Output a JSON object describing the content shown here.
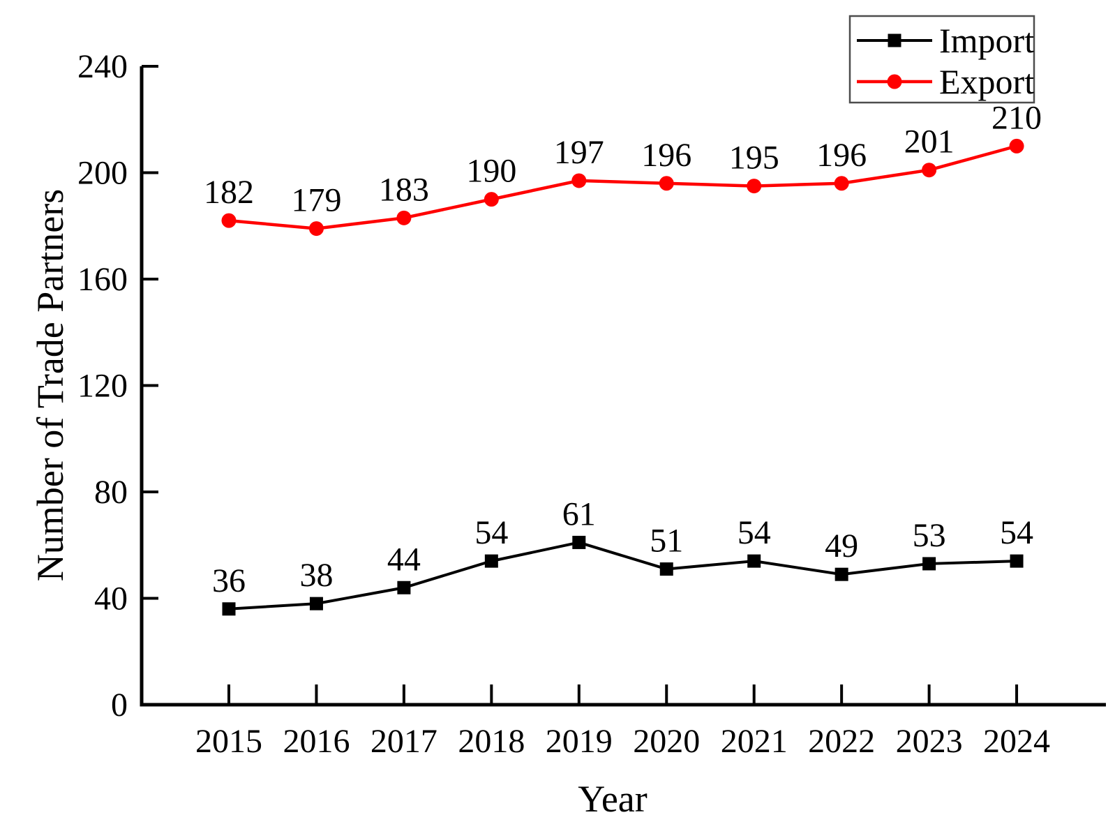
{
  "chart_data": {
    "type": "line",
    "title": "",
    "xlabel": "Year",
    "ylabel": "Number of Trade Partners",
    "categories": [
      "2015",
      "2016",
      "2017",
      "2018",
      "2019",
      "2020",
      "2021",
      "2022",
      "2023",
      "2024"
    ],
    "series": [
      {
        "name": "Import",
        "color": "#000000",
        "marker": "square",
        "values": [
          36,
          38,
          44,
          54,
          61,
          51,
          54,
          49,
          53,
          54
        ]
      },
      {
        "name": "Export",
        "color": "#FF0000",
        "marker": "circle",
        "values": [
          182,
          179,
          183,
          190,
          197,
          196,
          195,
          196,
          201,
          210
        ]
      }
    ],
    "ylim": [
      0,
      240
    ],
    "yticks": [
      0,
      40,
      80,
      120,
      160,
      200,
      240
    ],
    "grid": false,
    "data_labels": true,
    "legend_position": "top-right",
    "legend_border_color": "#4d4d4d",
    "background_color": "#ffffff"
  }
}
